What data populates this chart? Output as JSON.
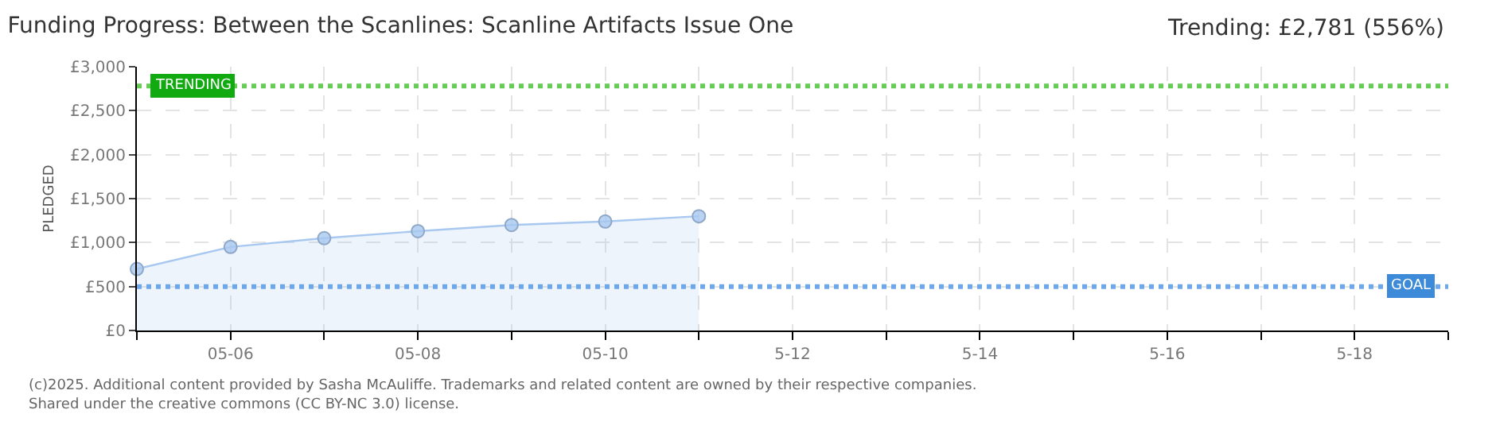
{
  "chart_data": {
    "type": "area",
    "title": "Funding Progress: Between the Scanlines: Scanline Artifacts Issue One",
    "ylabel": "PLEDGED",
    "x": [
      "--05-05",
      "--05-06",
      "--05-07",
      "--05-08",
      "--05-09",
      "--05-10",
      "--05-11"
    ],
    "series": [
      {
        "color": "#a8c8f0",
        "values": [
          700,
          950,
          1050,
          1130,
          1200,
          1240,
          1300
        ]
      }
    ],
    "xlim": [
      "--05-05",
      "--05-19"
    ],
    "xticks": [
      {
        "value": "--05-05",
        "label": null
      },
      {
        "value": "--05-06",
        "label": "05-06"
      },
      {
        "value": "--05-07",
        "label": null
      },
      {
        "value": "--05-08",
        "label": "05-08"
      },
      {
        "value": "--05-09",
        "label": null
      },
      {
        "value": "--05-10",
        "label": "05-10"
      },
      {
        "value": "--05-11",
        "label": null
      },
      {
        "value": "--05-12",
        "label": "5-12"
      },
      {
        "value": "--05-13",
        "label": null
      },
      {
        "value": "--05-14",
        "label": "5-14"
      },
      {
        "value": "--05-15",
        "label": null
      },
      {
        "value": "--05-16",
        "label": "5-16"
      },
      {
        "value": "--05-17",
        "label": null
      },
      {
        "value": "--05-18",
        "label": "5-18"
      },
      {
        "value": "--05-19",
        "label": null
      }
    ],
    "ylim": [
      0,
      3000
    ],
    "yticks": [
      {
        "value": 0,
        "label": "£0"
      },
      {
        "value": 500,
        "label": "£500"
      },
      {
        "value": 1000,
        "label": "£1,000"
      },
      {
        "value": 1500,
        "label": "£1,500"
      },
      {
        "value": 2000,
        "label": "£2,000"
      },
      {
        "value": 2500,
        "label": "£2,500"
      },
      {
        "value": 3000,
        "label": "£3,000"
      }
    ],
    "ref_lines": [
      {
        "axis": "y",
        "value": 2781,
        "label": "TRENDING",
        "color": "#66cc55",
        "line_style": "dotted"
      },
      {
        "axis": "y",
        "value": 500,
        "label": "GOAL",
        "color": "#6fa8e8",
        "line_style": "dotted"
      }
    ],
    "annotations": [
      "Trending: £2,781 (556%)",
      "(c)2025. Additional content provided by Sasha McAuliffe. Trademarks and related content are owned by their respective companies.",
      "Shared under the creative commons (CC BY-NC 3.0) license."
    ],
    "grid": true,
    "marker": "circle",
    "line_style": "solid",
    "legend": false
  }
}
